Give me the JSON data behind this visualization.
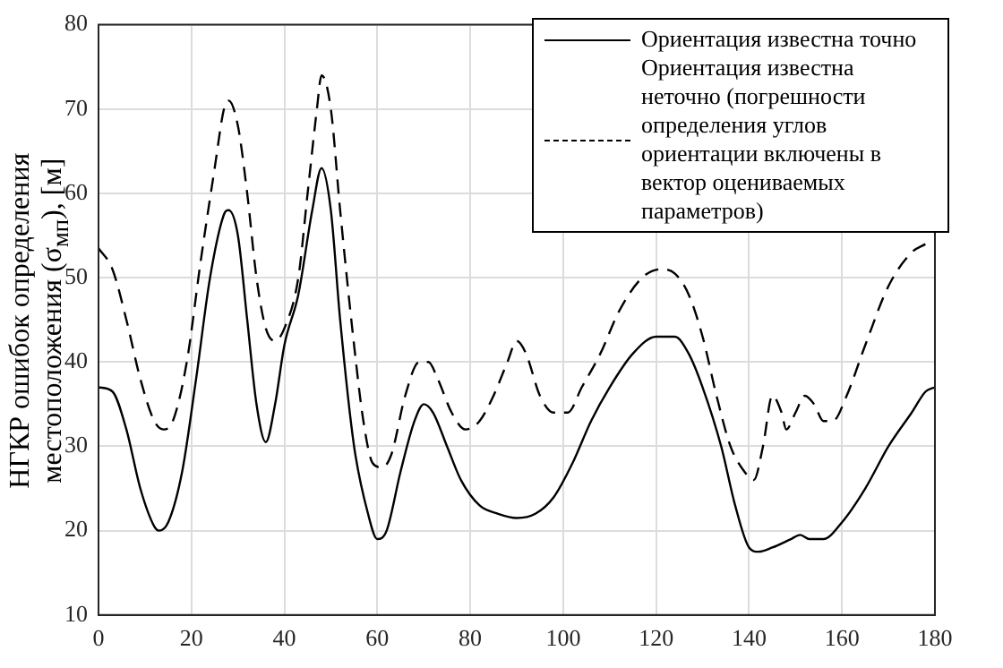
{
  "chart_data": {
    "type": "line",
    "ylabel": "НГКР ошибок определения местоположения (σ$_{мп}$), [м]",
    "xlim": [
      0,
      180
    ],
    "xticks": [
      0,
      20,
      40,
      60,
      80,
      100,
      120,
      140,
      160,
      180
    ],
    "ylim": [
      10,
      80
    ],
    "yticks": [
      10,
      20,
      30,
      40,
      50,
      60,
      70,
      80
    ],
    "grid": true,
    "legend": "top right",
    "marker": "none",
    "series": [
      {
        "name": "Ориентация известна точно",
        "color": "#000000",
        "line_style": "solid",
        "x": [
          0,
          3,
          6,
          9,
          12,
          13,
          15,
          18,
          21,
          24,
          27,
          28,
          30,
          32,
          34,
          36,
          38,
          40,
          43,
          46,
          48,
          50,
          52,
          55,
          58,
          60,
          62,
          65,
          68,
          70,
          72,
          75,
          78,
          82,
          86,
          90,
          94,
          98,
          102,
          106,
          110,
          115,
          120,
          124,
          127,
          130,
          134,
          137,
          140,
          142,
          145,
          149,
          151,
          153,
          156,
          160,
          165,
          170,
          175,
          178,
          180
        ],
        "values": [
          37,
          36.5,
          32,
          25,
          20.5,
          20,
          21,
          27,
          38,
          50,
          57.5,
          58,
          55,
          45,
          35,
          30.5,
          35,
          42,
          48,
          58,
          63,
          58,
          45,
          30,
          22,
          19,
          20,
          27,
          33,
          35,
          34,
          30,
          26,
          23,
          22,
          21.5,
          22,
          24,
          28,
          33,
          37,
          41,
          43,
          43,
          41,
          37,
          30,
          23,
          18,
          17.5,
          18,
          19,
          19.5,
          19,
          19,
          21,
          25,
          30,
          34,
          36.5,
          37
        ]
      },
      {
        "name": "Ориентация известна неточно (погрешности определения углов ориентации включены в вектор оцениваемых параметров)",
        "color": "#000000",
        "line_style": "dashed",
        "x": [
          0,
          3,
          6,
          9,
          12,
          14,
          16,
          19,
          22,
          25,
          27,
          28,
          30,
          32,
          34,
          36,
          38,
          40,
          43,
          45,
          47,
          48,
          50,
          52,
          55,
          57,
          59,
          61,
          63,
          66,
          69,
          71,
          73,
          76,
          79,
          82,
          85,
          88,
          90,
          92,
          95,
          98,
          101,
          104,
          108,
          112,
          117,
          121,
          124,
          127,
          130,
          133,
          136,
          139,
          141,
          143,
          145,
          147,
          148,
          150,
          152,
          154,
          156,
          158,
          161,
          165,
          170,
          175,
          178
        ],
        "values": [
          53.5,
          51,
          45,
          38,
          33,
          32,
          33,
          40,
          52,
          63,
          70,
          71,
          68,
          60,
          50,
          44,
          42.5,
          44,
          50,
          60,
          70,
          74,
          70,
          58,
          42,
          33,
          28,
          27.5,
          29,
          36,
          40,
          40,
          38,
          34,
          32,
          33,
          36,
          40,
          42.5,
          41,
          36,
          34,
          34,
          37,
          41,
          46,
          50,
          51,
          50.5,
          48,
          43,
          36,
          30,
          27,
          26,
          30,
          36,
          34,
          32,
          34,
          36,
          35,
          33,
          33,
          36,
          42,
          49,
          53,
          54
        ]
      }
    ]
  }
}
